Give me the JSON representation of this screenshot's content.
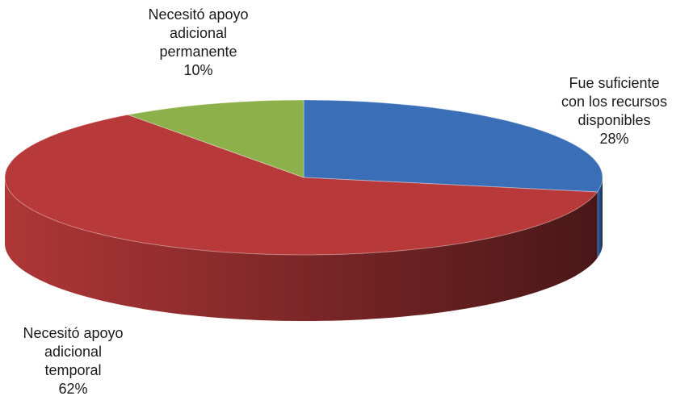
{
  "chart_data": {
    "type": "pie",
    "categories": [
      "Fue suficiente con los recursos disponibles",
      "Necesitó apoyo adicional temporal",
      "Necesitó apoyo adicional permanente"
    ],
    "values": [
      28,
      62,
      10
    ],
    "value_labels": [
      "28%",
      "62%",
      "10%"
    ],
    "colors": [
      "#3a6fb8",
      "#b8393a",
      "#8db14a"
    ]
  }
}
